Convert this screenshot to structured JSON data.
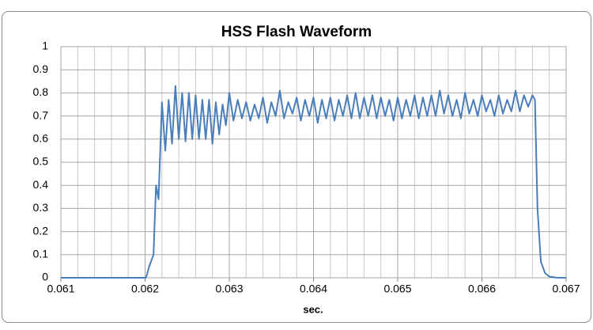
{
  "chart_data": {
    "type": "line",
    "title": "HSS Flash Waveform",
    "x_label": "sec.",
    "xlim": [
      0.061,
      0.067
    ],
    "xticks": [
      0.061,
      0.062,
      0.063,
      0.064,
      0.065,
      0.066,
      0.067
    ],
    "ylim": [
      0,
      1
    ],
    "yticks": [
      0,
      0.1,
      0.2,
      0.3,
      0.4,
      0.5,
      0.6,
      0.7,
      0.8,
      0.9,
      1
    ],
    "grid": true,
    "minor_x_grid_divisions": 5,
    "series": [
      {
        "color": "#4a7ebb",
        "x": [
          0.061,
          0.06201,
          0.06205,
          0.0621,
          0.06213,
          0.06216,
          0.0622,
          0.06224,
          0.06228,
          0.06232,
          0.06236,
          0.0624,
          0.06244,
          0.06248,
          0.06252,
          0.06256,
          0.0626,
          0.06264,
          0.06268,
          0.06272,
          0.06276,
          0.0628,
          0.06284,
          0.06288,
          0.06292,
          0.06296,
          0.063,
          0.06305,
          0.0631,
          0.06315,
          0.0632,
          0.06325,
          0.0633,
          0.06335,
          0.0634,
          0.06345,
          0.0635,
          0.06355,
          0.0636,
          0.06365,
          0.0637,
          0.06375,
          0.0638,
          0.06385,
          0.0639,
          0.06395,
          0.064,
          0.06405,
          0.0641,
          0.06415,
          0.0642,
          0.06425,
          0.0643,
          0.06435,
          0.0644,
          0.06445,
          0.0645,
          0.06455,
          0.0646,
          0.06465,
          0.0647,
          0.06475,
          0.0648,
          0.06485,
          0.0649,
          0.06495,
          0.065,
          0.06505,
          0.0651,
          0.06515,
          0.0652,
          0.06525,
          0.0653,
          0.06535,
          0.0654,
          0.06545,
          0.0655,
          0.06555,
          0.0656,
          0.06565,
          0.0657,
          0.06575,
          0.0658,
          0.06585,
          0.0659,
          0.06595,
          0.066,
          0.06605,
          0.0661,
          0.06615,
          0.0662,
          0.06625,
          0.0663,
          0.06635,
          0.0664,
          0.06645,
          0.0665,
          0.06655,
          0.0666,
          0.06663,
          0.06666,
          0.0667,
          0.06675,
          0.0668,
          0.0669,
          0.067
        ],
        "values": [
          0,
          0,
          0.05,
          0.1,
          0.4,
          0.34,
          0.76,
          0.55,
          0.77,
          0.58,
          0.83,
          0.6,
          0.8,
          0.59,
          0.8,
          0.6,
          0.79,
          0.6,
          0.77,
          0.6,
          0.77,
          0.58,
          0.76,
          0.62,
          0.75,
          0.66,
          0.8,
          0.68,
          0.77,
          0.69,
          0.76,
          0.68,
          0.75,
          0.69,
          0.78,
          0.67,
          0.76,
          0.7,
          0.81,
          0.69,
          0.76,
          0.71,
          0.78,
          0.68,
          0.77,
          0.7,
          0.78,
          0.67,
          0.77,
          0.69,
          0.78,
          0.68,
          0.77,
          0.7,
          0.79,
          0.69,
          0.8,
          0.69,
          0.78,
          0.7,
          0.79,
          0.69,
          0.78,
          0.7,
          0.77,
          0.68,
          0.78,
          0.69,
          0.77,
          0.7,
          0.79,
          0.69,
          0.78,
          0.7,
          0.79,
          0.7,
          0.81,
          0.71,
          0.79,
          0.7,
          0.77,
          0.69,
          0.8,
          0.71,
          0.77,
          0.7,
          0.79,
          0.72,
          0.77,
          0.7,
          0.79,
          0.71,
          0.77,
          0.72,
          0.81,
          0.72,
          0.79,
          0.74,
          0.79,
          0.77,
          0.3,
          0.07,
          0.02,
          0.005,
          0,
          0
        ]
      }
    ]
  }
}
